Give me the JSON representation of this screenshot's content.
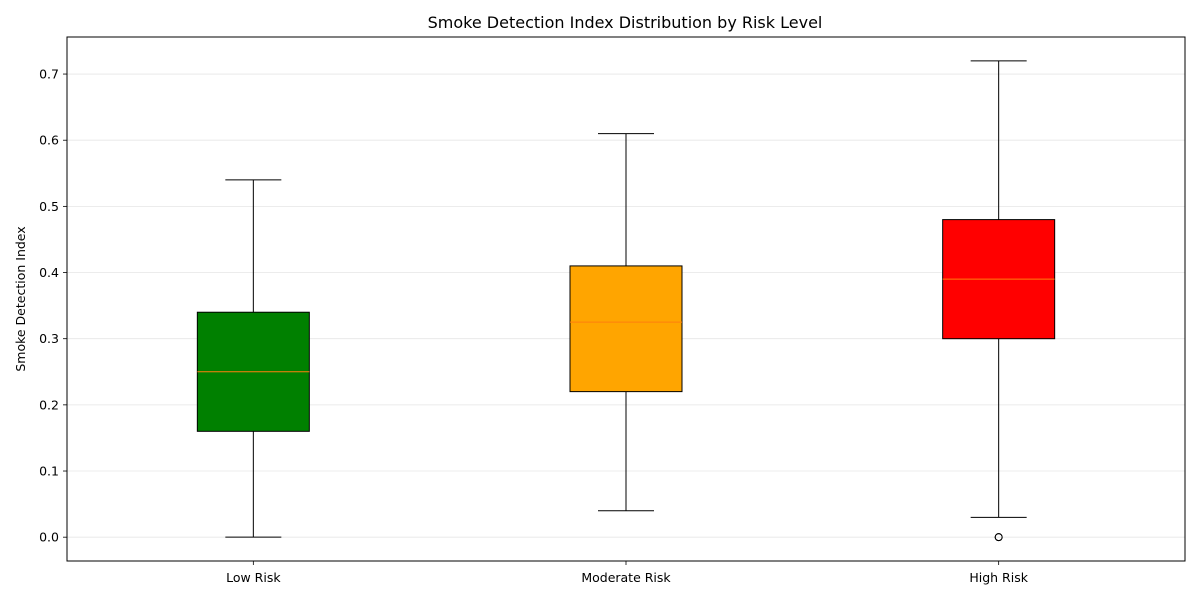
{
  "chart_data": {
    "type": "box",
    "title": "Smoke Detection Index Distribution by Risk Level",
    "xlabel": "",
    "ylabel": "Smoke Detection Index",
    "ylim": [
      -0.036,
      0.756
    ],
    "yticks": [
      0.0,
      0.1,
      0.2,
      0.3,
      0.4,
      0.5,
      0.6,
      0.7
    ],
    "ytick_labels": [
      "0.0",
      "0.1",
      "0.2",
      "0.3",
      "0.4",
      "0.5",
      "0.6",
      "0.7"
    ],
    "grid": {
      "y": true,
      "x": false
    },
    "categories": [
      "Low Risk",
      "Moderate Risk",
      "High Risk"
    ],
    "boxes": [
      {
        "category": "Low Risk",
        "whisker_low": 0.0,
        "q1": 0.16,
        "median": 0.25,
        "q3": 0.34,
        "whisker_high": 0.54,
        "outliers": [],
        "color": "#008000"
      },
      {
        "category": "Moderate Risk",
        "whisker_low": 0.04,
        "q1": 0.22,
        "median": 0.325,
        "q3": 0.41,
        "whisker_high": 0.61,
        "outliers": [],
        "color": "#ffa500"
      },
      {
        "category": "High Risk",
        "whisker_low": 0.03,
        "q1": 0.3,
        "median": 0.39,
        "q3": 0.48,
        "whisker_high": 0.72,
        "outliers": [
          0.0,
          0.0
        ],
        "color": "#ff0000"
      }
    ],
    "median_color": "#ff7f0e"
  }
}
